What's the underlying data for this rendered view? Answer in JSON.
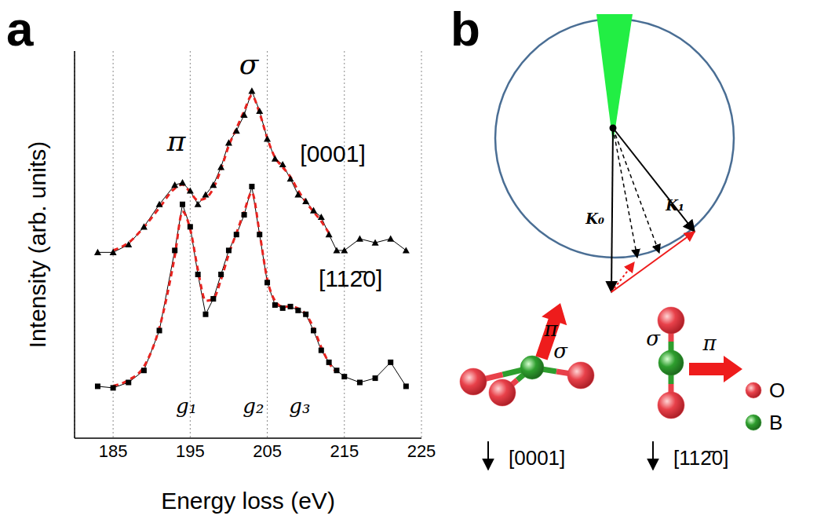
{
  "chart_data": {
    "type": "line",
    "panel": "a",
    "x_label": "Energy loss (eV)",
    "y_label": "Intensity (arb. units)",
    "x": [
      183,
      185,
      187,
      189,
      191,
      193,
      194,
      195,
      196,
      197,
      198,
      199,
      200,
      201,
      202,
      203,
      204,
      205,
      206,
      207,
      208,
      209,
      210,
      211,
      212,
      213,
      214,
      215,
      217,
      219,
      221,
      223
    ],
    "xlim": [
      180,
      225
    ],
    "xticks": [
      185,
      195,
      205,
      215,
      225
    ],
    "ylim": [
      0,
      10
    ],
    "yticks": [],
    "tick_labels": "x",
    "grid": "x",
    "series": [
      {
        "name": "[0001]",
        "color": "#000000",
        "marker": "triangle",
        "label_at": [
          213.5,
          7.3
        ],
        "values": [
          4.8,
          4.8,
          5.0,
          5.46,
          6.04,
          6.54,
          6.6,
          6.39,
          6.04,
          6.29,
          6.54,
          7.0,
          7.63,
          7.94,
          8.35,
          8.97,
          8.45,
          7.73,
          7.22,
          7.07,
          6.7,
          6.29,
          6.12,
          5.88,
          5.71,
          5.26,
          4.85,
          4.85,
          5.15,
          5.05,
          5.15,
          4.85
        ],
        "fit": {
          "color": "#e8231f",
          "line_style": "dashed",
          "values": [
            null,
            4.85,
            5.05,
            5.45,
            5.95,
            6.45,
            6.55,
            6.35,
            6.15,
            6.2,
            6.45,
            6.95,
            7.55,
            8.0,
            8.45,
            8.85,
            8.4,
            7.75,
            7.25,
            7.0,
            6.75,
            6.4,
            6.1,
            5.85,
            5.6,
            5.3,
            null,
            null,
            null,
            null,
            null,
            null
          ]
        }
      },
      {
        "name": "[112̄0]",
        "color": "#000000",
        "marker": "square",
        "label_at": [
          215.8,
          4.08
        ],
        "values": [
          1.34,
          1.3,
          1.44,
          1.75,
          2.78,
          4.85,
          6.04,
          5.46,
          4.23,
          3.2,
          3.6,
          4.23,
          4.85,
          5.26,
          5.77,
          6.5,
          5.26,
          4.02,
          3.44,
          3.36,
          3.4,
          3.3,
          3.2,
          2.78,
          2.27,
          1.96,
          1.75,
          1.59,
          1.44,
          1.55,
          1.96,
          1.34
        ],
        "fit": {
          "color": "#e8231f",
          "line_style": "dashed",
          "values": [
            null,
            1.35,
            1.5,
            1.85,
            2.85,
            4.7,
            5.85,
            5.4,
            4.35,
            3.55,
            3.6,
            4.1,
            4.75,
            5.3,
            5.85,
            6.35,
            5.3,
            4.1,
            3.55,
            3.4,
            3.4,
            3.35,
            3.2,
            2.85,
            2.35,
            1.95,
            1.7,
            null,
            null,
            null,
            null,
            null
          ]
        }
      }
    ],
    "annotations": [
      {
        "text": "π",
        "x": 193.2,
        "y": 7.6
      },
      {
        "text": "σ",
        "x": 202.6,
        "y": 9.6
      },
      {
        "text": "g₁",
        "x": 194.5,
        "y": 0.8
      },
      {
        "text": "g₂",
        "x": 203.2,
        "y": 0.8
      },
      {
        "text": "g₃",
        "x": 209.2,
        "y": 0.8
      }
    ]
  },
  "diagram": {
    "panel": "b",
    "vectors": {
      "incident": "K₀",
      "scattered": "K₁"
    },
    "molecules": [
      {
        "direction": "[0001]",
        "bonds": {
          "pi": "π",
          "sigma": "σ"
        }
      },
      {
        "direction": "[112̄0]",
        "bonds": {
          "pi": "π",
          "sigma": "σ"
        }
      }
    ],
    "atoms": [
      {
        "label": "O",
        "color": "#e8414a"
      },
      {
        "label": "B",
        "color": "#2e9e2e"
      }
    ]
  }
}
